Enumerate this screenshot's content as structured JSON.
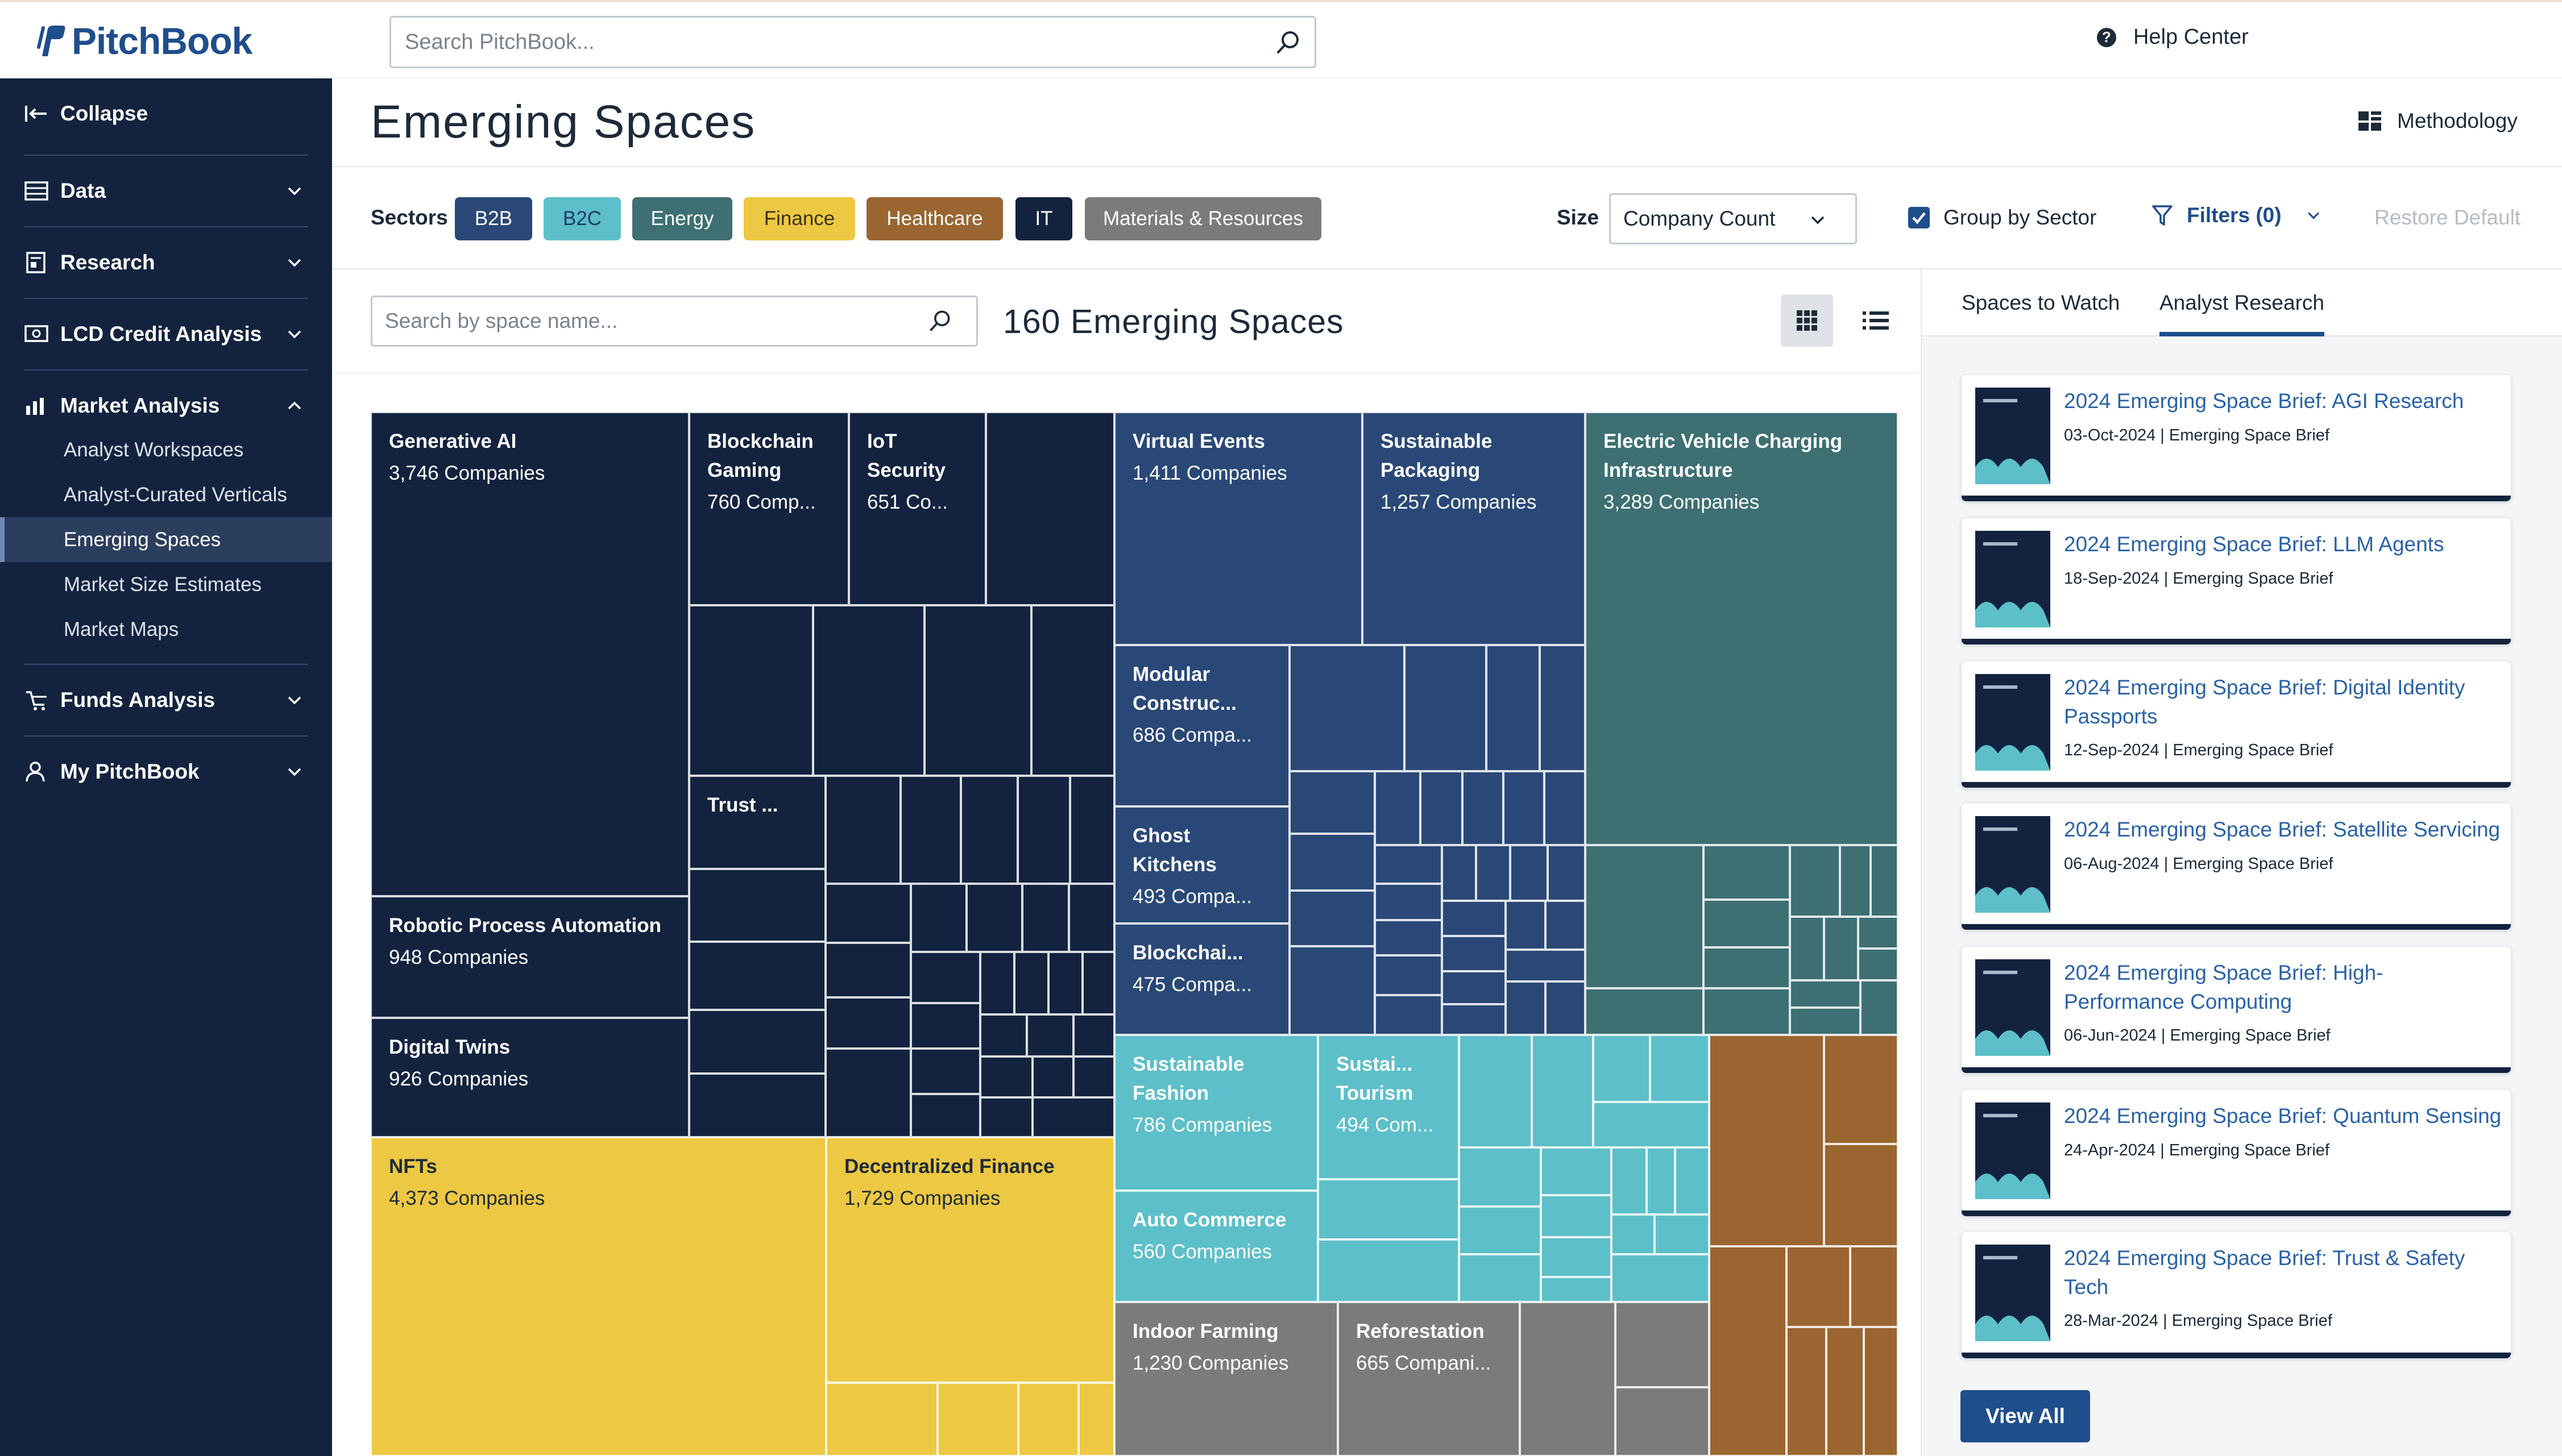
{
  "app": {
    "name": "PitchBook"
  },
  "header": {
    "search_placeholder": "Search PitchBook...",
    "help_label": "Help Center"
  },
  "sidebar": {
    "collapse_label": "Collapse",
    "items": [
      {
        "label": "Data",
        "icon": "database-icon",
        "expanded": false
      },
      {
        "label": "Research",
        "icon": "research-icon",
        "expanded": false
      },
      {
        "label": "LCD Credit Analysis",
        "icon": "credit-icon",
        "expanded": false
      },
      {
        "label": "Market Analysis",
        "icon": "market-icon",
        "expanded": true
      },
      {
        "label": "Funds Analysis",
        "icon": "funds-icon",
        "expanded": false
      },
      {
        "label": "My PitchBook",
        "icon": "user-icon",
        "expanded": false
      }
    ],
    "market_analysis_subitems": [
      {
        "label": "Analyst Workspaces",
        "active": false
      },
      {
        "label": "Analyst-Curated Verticals",
        "active": false
      },
      {
        "label": "Emerging Spaces",
        "active": true
      },
      {
        "label": "Market Size Estimates",
        "active": false
      },
      {
        "label": "Market Maps",
        "active": false
      }
    ]
  },
  "page": {
    "title": "Emerging Spaces",
    "methodology_label": "Methodology"
  },
  "filters": {
    "sectors_label": "Sectors",
    "sectors": [
      {
        "label": "B2B",
        "bg": "#2a4877",
        "fg": "#ffffff"
      },
      {
        "label": "B2C",
        "bg": "#5dbfc9",
        "fg": "#1c3b66"
      },
      {
        "label": "Energy",
        "bg": "#3d6f73",
        "fg": "#ffffff"
      },
      {
        "label": "Finance",
        "bg": "#edc842",
        "fg": "#3b3214"
      },
      {
        "label": "Healthcare",
        "bg": "#9a6530",
        "fg": "#ffffff"
      },
      {
        "label": "IT",
        "bg": "#13233f",
        "fg": "#ffffff"
      },
      {
        "label": "Materials & Resources",
        "bg": "#7b7b7b",
        "fg": "#ffffff"
      }
    ],
    "size_label": "Size",
    "size_value": "Company Count",
    "group_by_label": "Group by Sector",
    "group_by_checked": true,
    "filters_label": "Filters (0)",
    "restore_label": "Restore Default"
  },
  "main": {
    "search_placeholder": "Search by space name...",
    "count_title": "160 Emerging Spaces",
    "view_mode": "grid"
  },
  "sector_colors": {
    "IT": "#13233f",
    "B2B": "#2a4877",
    "Energy": "#3d6f73",
    "B2C": "#5dbfc9",
    "Finance": "#edc842",
    "Healthcare": "#9a6530",
    "Materials": "#7b7b7b"
  },
  "treemap_labels": [
    {
      "name": "Generative AI",
      "count": "3,746 Companies"
    },
    {
      "name": "Blockchain Gaming",
      "count": "760 Comp..."
    },
    {
      "name": "IoT Security",
      "count": "651 Co..."
    },
    {
      "name": "Trust ...",
      "count": ""
    },
    {
      "name": "Robotic Process Automation",
      "count": "948 Companies"
    },
    {
      "name": "Digital Twins",
      "count": "926 Companies"
    },
    {
      "name": "NFTs",
      "count": "4,373 Companies"
    },
    {
      "name": "Decentralized Finance",
      "count": "1,729 Companies"
    },
    {
      "name": "Virtual Events",
      "count": "1,411 Companies"
    },
    {
      "name": "Sustainable Packaging",
      "count": "1,257 Companies"
    },
    {
      "name": "Modular Construc...",
      "count": "686 Compa..."
    },
    {
      "name": "Ghost Kitchens",
      "count": "493 Compa..."
    },
    {
      "name": "Blockchai...",
      "count": "475 Compa..."
    },
    {
      "name": "Electric Vehicle Charging Infrastructure",
      "count": "3,289 Companies"
    },
    {
      "name": "Sustainable Fashion",
      "count": "786 Companies"
    },
    {
      "name": "Sustai... Tourism",
      "count": "494 Com..."
    },
    {
      "name": "Auto Commerce",
      "count": "560 Companies"
    },
    {
      "name": "Indoor Farming",
      "count": "1,230 Companies"
    },
    {
      "name": "Reforestation",
      "count": "665 Compani..."
    }
  ],
  "right_panel": {
    "tabs": [
      {
        "label": "Spaces to Watch",
        "active": false
      },
      {
        "label": "Analyst Research",
        "active": true
      }
    ],
    "cards": [
      {
        "title": "2024 Emerging Space Brief: AGI Research",
        "date": "03-Oct-2024",
        "type": "Emerging Space Brief"
      },
      {
        "title": "2024 Emerging Space Brief: LLM Agents",
        "date": "18-Sep-2024",
        "type": "Emerging Space Brief"
      },
      {
        "title": "2024 Emerging Space Brief: Digital Identity Passports",
        "date": "12-Sep-2024",
        "type": "Emerging Space Brief"
      },
      {
        "title": "2024 Emerging Space Brief: Satellite Servicing",
        "date": "06-Aug-2024",
        "type": "Emerging Space Brief"
      },
      {
        "title": "2024 Emerging Space Brief: High-Performance Computing",
        "date": "06-Jun-2024",
        "type": "Emerging Space Brief"
      },
      {
        "title": "2024 Emerging Space Brief: Quantum Sensing",
        "date": "24-Apr-2024",
        "type": "Emerging Space Brief"
      },
      {
        "title": "2024 Emerging Space Brief: Trust & Safety Tech",
        "date": "28-Mar-2024",
        "type": "Emerging Space Brief"
      }
    ],
    "view_all_label": "View All"
  }
}
